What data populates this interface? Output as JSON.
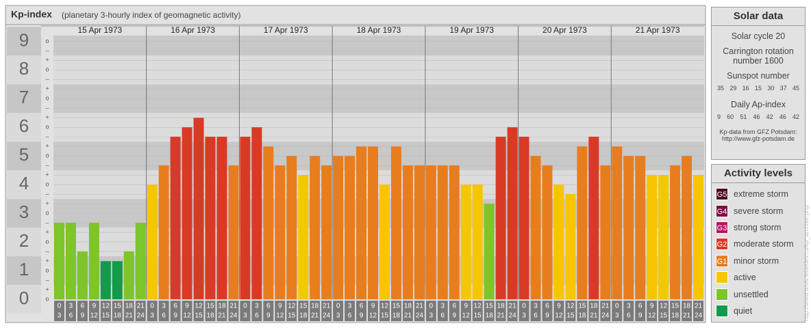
{
  "chart_data": {
    "type": "bar",
    "title": "Kp-index",
    "subtitle": "(planetary 3-hourly index of geomagnetic activity)",
    "ylim": [
      0,
      9.2
    ],
    "yticks": [
      0,
      1,
      2,
      3,
      4,
      5,
      6,
      7,
      8,
      9
    ],
    "sublabels": [
      "–",
      "o",
      "+"
    ],
    "hour_labels": [
      [
        "0",
        "3"
      ],
      [
        "3",
        "6"
      ],
      [
        "6",
        "9"
      ],
      [
        "9",
        "12"
      ],
      [
        "12",
        "15"
      ],
      [
        "15",
        "18"
      ],
      [
        "18",
        "21"
      ],
      [
        "21",
        "24"
      ]
    ],
    "days": [
      {
        "label": "15 Apr 1973",
        "values": [
          2.67,
          2.67,
          1.67,
          2.67,
          1.33,
          1.33,
          1.67,
          2.67
        ],
        "colors": [
          "#7dc52b",
          "#7dc52b",
          "#7dc52b",
          "#7dc52b",
          "#139a4a",
          "#139a4a",
          "#7dc52b",
          "#7dc52b"
        ]
      },
      {
        "label": "16 Apr 1973",
        "values": [
          4,
          4.67,
          5.67,
          6,
          6.33,
          5.67,
          5.67,
          4.67
        ],
        "colors": [
          "#f7c600",
          "#e87d1e",
          "#d93a26",
          "#d93a26",
          "#d93a26",
          "#d93a26",
          "#d93a26",
          "#e87d1e"
        ]
      },
      {
        "label": "17 Apr 1973",
        "values": [
          5.67,
          6,
          5.33,
          4.67,
          5,
          4.33,
          5,
          4.67
        ],
        "colors": [
          "#d93a26",
          "#d93a26",
          "#e87d1e",
          "#e87d1e",
          "#e87d1e",
          "#f7c600",
          "#e87d1e",
          "#e87d1e"
        ]
      },
      {
        "label": "18 Apr 1973",
        "values": [
          5,
          5,
          5.33,
          5.33,
          4,
          5.33,
          4.67,
          4.67
        ],
        "colors": [
          "#e87d1e",
          "#e87d1e",
          "#e87d1e",
          "#e87d1e",
          "#f7c600",
          "#e87d1e",
          "#e87d1e",
          "#e87d1e"
        ]
      },
      {
        "label": "19 Apr 1973",
        "values": [
          4.67,
          4.67,
          4.67,
          4,
          4,
          3.33,
          5.67,
          6
        ],
        "colors": [
          "#e87d1e",
          "#e87d1e",
          "#e87d1e",
          "#f7c600",
          "#f7c600",
          "#7dc52b",
          "#d93a26",
          "#d93a26"
        ]
      },
      {
        "label": "20 Apr 1973",
        "values": [
          5.67,
          5,
          4.67,
          4,
          3.67,
          5.33,
          5.67,
          4.67
        ],
        "colors": [
          "#d93a26",
          "#e87d1e",
          "#e87d1e",
          "#f7c600",
          "#f7c600",
          "#e87d1e",
          "#d93a26",
          "#e87d1e"
        ]
      },
      {
        "label": "21 Apr 1973",
        "values": [
          5.33,
          5,
          5,
          4.33,
          4.33,
          4.67,
          5,
          4.33
        ],
        "colors": [
          "#e87d1e",
          "#e87d1e",
          "#e87d1e",
          "#f7c600",
          "#f7c600",
          "#e87d1e",
          "#e87d1e",
          "#f7c600"
        ]
      }
    ]
  },
  "solar_data": {
    "title": "Solar data",
    "cycle": "Solar cycle 20",
    "carrington": "Carrington rotation number 1600",
    "sunspot_title": "Sunspot number",
    "sunspots": [
      "35",
      "29",
      "16",
      "15",
      "30",
      "37",
      "45"
    ],
    "ap_title": "Daily Ap-index",
    "ap": [
      "9",
      "60",
      "51",
      "46",
      "42",
      "46",
      "42"
    ],
    "source": "Kp-data from GFZ Potsdam:",
    "source_url": "http://www.gfz-potsdam.de"
  },
  "activity_levels": {
    "title": "Activity levels",
    "levels": [
      {
        "code": "G5",
        "name": "extreme storm",
        "color": "#4e0a24"
      },
      {
        "code": "G4",
        "name": "severe storm",
        "color": "#7a0f45"
      },
      {
        "code": "G3",
        "name": "strong storm",
        "color": "#b5175f"
      },
      {
        "code": "G2",
        "name": "moderate storm",
        "color": "#d93a26"
      },
      {
        "code": "G1",
        "name": "minor storm",
        "color": "#e87d1e"
      },
      {
        "name": "active",
        "color": "#f7c600"
      },
      {
        "name": "unsettled",
        "color": "#7dc52b"
      },
      {
        "name": "quiet",
        "color": "#139a4a"
      }
    ]
  },
  "watermark": "http://www.tesis.lebedev.ru/kp_archive.php"
}
